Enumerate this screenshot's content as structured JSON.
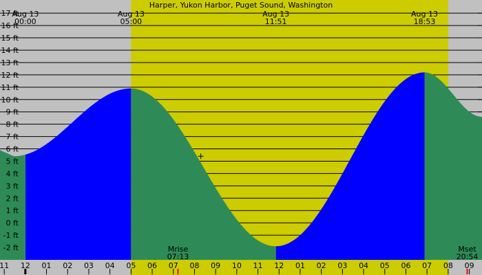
{
  "chart_data": {
    "type": "area",
    "title": "Harper, Yukon Harbor, Puget Sound, Washington",
    "y_unit": "ft",
    "ylim": [
      -3,
      17.4
    ],
    "y_ticks": [
      -2,
      -1,
      0,
      1,
      2,
      3,
      4,
      5,
      6,
      7,
      8,
      9,
      10,
      11,
      12,
      13,
      14,
      15,
      16,
      17
    ],
    "y_tick_labels": [
      "-2 ft",
      "-1 ft",
      "0 ft",
      "1 ft",
      "2 ft",
      "3 ft",
      "4 ft",
      "5 ft",
      "6 ft",
      "7 ft",
      "8 ft",
      "9 ft",
      "10 ft",
      "11 ft",
      "12 ft",
      "13 ft",
      "14 ft",
      "15 ft",
      "16 ft",
      "17 ft"
    ],
    "x_axis": {
      "unit": "hour",
      "range": [
        -1.2,
        21.6
      ],
      "hour_labels": [
        "11",
        "12",
        "01",
        "02",
        "03",
        "04",
        "05",
        "06",
        "07",
        "08",
        "09",
        "10",
        "11",
        "12",
        "01",
        "02",
        "03",
        "04",
        "05",
        "06",
        "07",
        "08",
        "09"
      ],
      "first_hour_label_value": -1
    },
    "daylight": {
      "sunrise": "05:00",
      "sunset": "20:00"
    },
    "top_labels": [
      {
        "date": "Aug 13",
        "time": "00:00",
        "hour": 0
      },
      {
        "date": "Aug 13",
        "time": "05:00",
        "hour": 5
      },
      {
        "date": "Aug 13",
        "time": "11:51",
        "hour": 11.85
      },
      {
        "date": "Aug 13",
        "time": "18:53",
        "hour": 18.88
      }
    ],
    "tides": [
      {
        "time": "05:00",
        "hour": 5,
        "height": 10.9,
        "type": "high"
      },
      {
        "time": "11:51",
        "hour": 11.85,
        "height": -1.9,
        "type": "low"
      },
      {
        "time": "18:53",
        "hour": 18.88,
        "height": 12.2,
        "type": "high"
      }
    ],
    "tide_curve_start": {
      "hour": -1.2,
      "height": 5.9
    },
    "tide_curve_end": {
      "hour": 21.6,
      "height": 8.6
    },
    "min_before_start": {
      "hour": -0.55,
      "height": 5.4
    },
    "series": [
      {
        "name": "Rising tide",
        "hours": [
          [
            0,
            5
          ],
          [
            11.85,
            18.88
          ]
        ]
      },
      {
        "name": "Falling tide",
        "hours": [
          [
            -1.2,
            0
          ],
          [
            5,
            11.85
          ],
          [
            18.88,
            21.6
          ]
        ]
      }
    ],
    "moon": [
      {
        "label": "Mrise",
        "time": "07:13",
        "hour": 7.22
      },
      {
        "label": "Mset",
        "time": "20:54",
        "hour": 20.9
      }
    ],
    "current_marker": {
      "hour": 8.3,
      "height": 5.4
    },
    "colors": {
      "background": "#c0c0c0",
      "daylight": "#cccc00",
      "rising_tide": "#0000ff",
      "falling_tide": "#2e8b57",
      "grid": "#000000",
      "moon_tick": "#ff0000"
    }
  }
}
